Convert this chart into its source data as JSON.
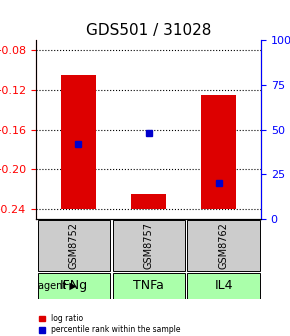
{
  "title": "GDS501 / 31028",
  "samples": [
    "GSM8752",
    "GSM8757",
    "GSM8762"
  ],
  "agents": [
    "IFNg",
    "TNFa",
    "IL4"
  ],
  "log_ratios": [
    -0.105,
    -0.225,
    -0.125
  ],
  "percentile_ranks": [
    0.42,
    0.48,
    0.2
  ],
  "ylim_left": [
    -0.25,
    -0.07
  ],
  "yticks_left": [
    -0.24,
    -0.2,
    -0.16,
    -0.12,
    -0.08
  ],
  "yticks_right": [
    0,
    25,
    50,
    75,
    100
  ],
  "baseline": -0.24,
  "bar_color": "#dd0000",
  "percentile_color": "#0000cc",
  "bar_width": 0.5,
  "sample_box_color": "#cccccc",
  "agent_box_color": "#aaffaa",
  "title_fontsize": 11,
  "tick_fontsize": 8,
  "label_fontsize": 8,
  "agent_fontsize": 9,
  "sample_fontsize": 7
}
